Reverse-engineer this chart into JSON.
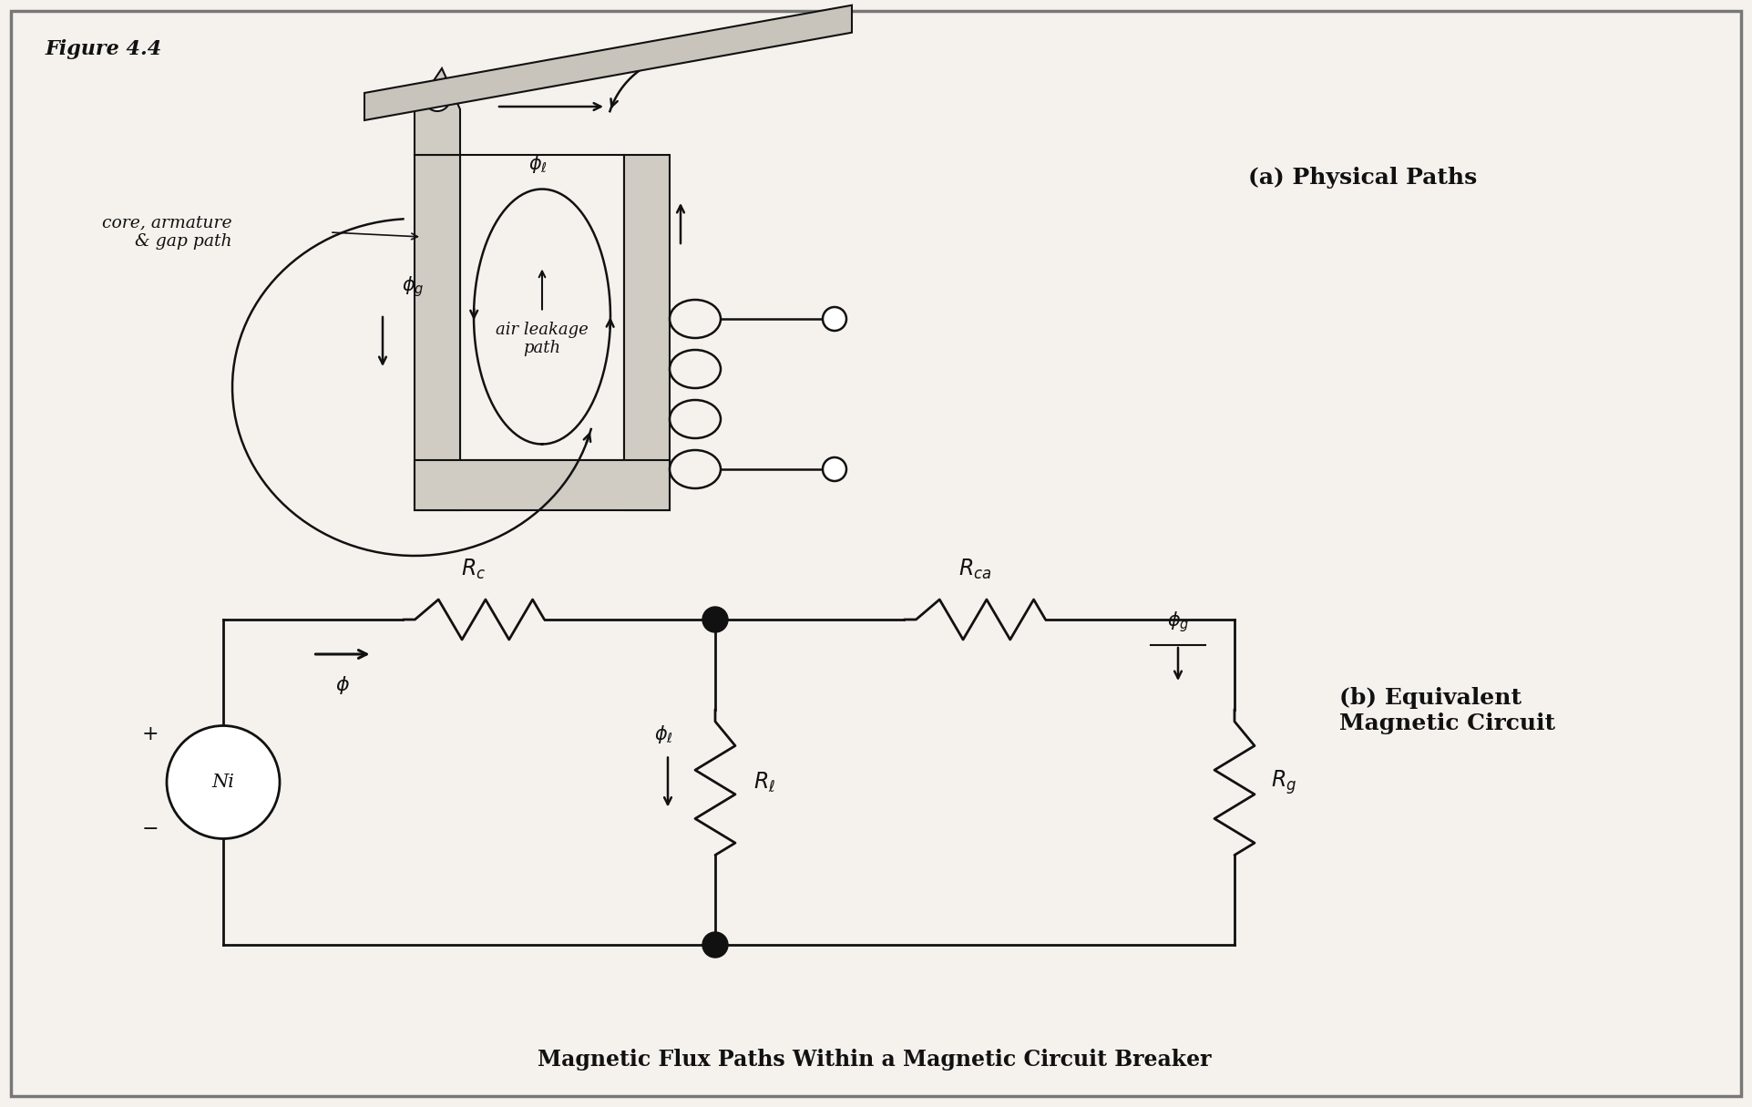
{
  "figure_label": "Figure 4.4",
  "title": "Magnetic Flux Paths Within a Magnetic Circuit Breaker",
  "part_a_label": "(a) Physical Paths",
  "part_b_label": "(b) Equivalent\nMagnetic Circuit",
  "label_core": "core, armature\n& gap path",
  "label_air_leakage": "air leakage\npath",
  "label_Ni": "Ni",
  "label_plus": "+",
  "label_minus": "−",
  "bg_color": "#f5f2ed",
  "line_color": "#111111",
  "core_fill": "#d0ccc4",
  "armature_fill": "#c8c4bc",
  "white": "#ffffff"
}
